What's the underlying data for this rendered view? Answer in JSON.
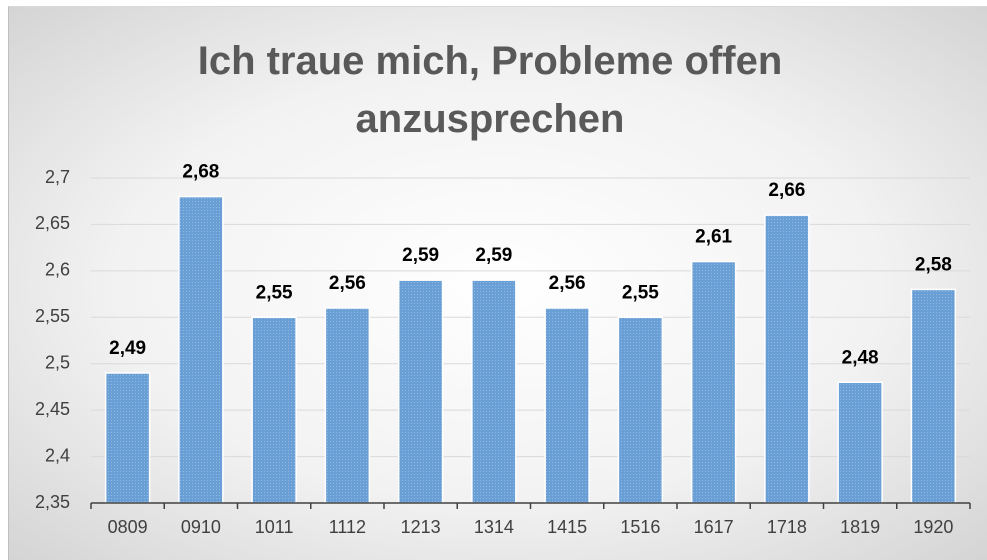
{
  "chart_data": {
    "type": "bar",
    "title": "Ich traue mich, Probleme offen anzusprechen",
    "categories": [
      "0809",
      "0910",
      "1011",
      "1112",
      "1213",
      "1314",
      "1415",
      "1516",
      "1617",
      "1718",
      "1819",
      "1920"
    ],
    "values": [
      2.49,
      2.68,
      2.55,
      2.56,
      2.59,
      2.59,
      2.56,
      2.55,
      2.61,
      2.66,
      2.48,
      2.58
    ],
    "value_labels": [
      "2,49",
      "2,68",
      "2,55",
      "2,56",
      "2,59",
      "2,59",
      "2,56",
      "2,55",
      "2,61",
      "2,66",
      "2,48",
      "2,58"
    ],
    "color": "#6a9fd6",
    "ylim": [
      2.35,
      2.7
    ],
    "yticks": [
      {
        "value": 2.35,
        "label": "2,35"
      },
      {
        "value": 2.4,
        "label": "2,4"
      },
      {
        "value": 2.45,
        "label": "2,45"
      },
      {
        "value": 2.5,
        "label": "2,5"
      },
      {
        "value": 2.55,
        "label": "2,55"
      },
      {
        "value": 2.6,
        "label": "2,6"
      },
      {
        "value": 2.65,
        "label": "2,65"
      },
      {
        "value": 2.7,
        "label": "2,7"
      }
    ],
    "grid": true
  }
}
